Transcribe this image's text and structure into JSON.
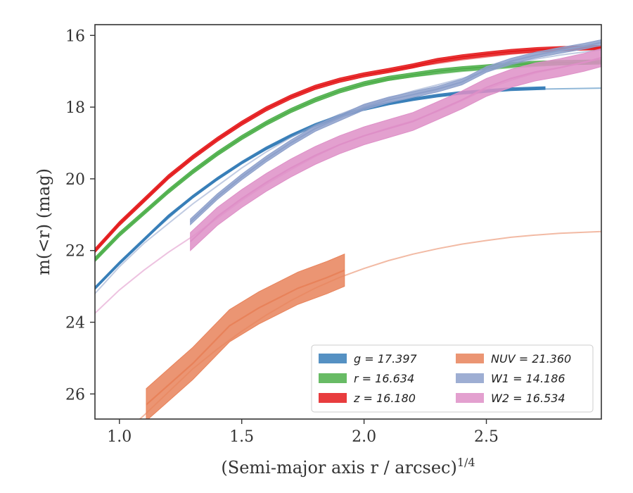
{
  "chart_data": {
    "type": "line",
    "xlabel": "(Semi-major axis r / arcsec)^1/4",
    "ylabel": "m(<r) (mag)",
    "xlim": [
      0.9,
      2.97
    ],
    "ylim": [
      26.7,
      15.7
    ],
    "y_inverted": true,
    "x_ticks": [
      1.0,
      1.5,
      2.0,
      2.5
    ],
    "x_tick_labels": [
      "1.0",
      "1.5",
      "2.0",
      "2.5"
    ],
    "y_ticks": [
      16,
      18,
      20,
      22,
      24,
      26
    ],
    "y_tick_labels": [
      "16",
      "18",
      "20",
      "22",
      "24",
      "26"
    ],
    "grid": false,
    "legend_position": "lower-right",
    "legend_columns": 2,
    "series": [
      {
        "name": "g = 17.397",
        "color": "#377eb8",
        "measured": {
          "x": [
            0.9,
            1.0,
            1.1,
            1.2,
            1.3,
            1.4,
            1.5,
            1.6,
            1.7,
            1.8,
            1.9,
            2.0,
            2.1,
            2.2,
            2.3,
            2.4,
            2.5,
            2.6,
            2.74
          ],
          "y": [
            23.05,
            22.35,
            21.7,
            21.05,
            20.5,
            20.0,
            19.55,
            19.15,
            18.8,
            18.5,
            18.25,
            18.05,
            17.9,
            17.78,
            17.68,
            17.6,
            17.55,
            17.5,
            17.47
          ],
          "band": 0.04
        },
        "model": {
          "x": [
            0.9,
            1.1,
            1.3,
            1.5,
            1.7,
            1.9,
            2.1,
            2.3,
            2.5,
            2.7,
            2.97
          ],
          "y": [
            23.05,
            21.7,
            20.5,
            19.55,
            18.8,
            18.25,
            17.9,
            17.68,
            17.55,
            17.5,
            17.47
          ]
        }
      },
      {
        "name": "r = 16.634",
        "color": "#4daf4a",
        "measured": {
          "x": [
            0.9,
            1.0,
            1.1,
            1.2,
            1.3,
            1.4,
            1.5,
            1.6,
            1.7,
            1.8,
            1.9,
            2.0,
            2.1,
            2.2,
            2.3,
            2.4,
            2.5,
            2.6,
            2.7,
            2.8,
            2.9,
            2.97
          ],
          "y": [
            22.25,
            21.55,
            20.95,
            20.35,
            19.8,
            19.3,
            18.85,
            18.45,
            18.1,
            17.8,
            17.55,
            17.35,
            17.2,
            17.1,
            17.0,
            16.93,
            16.88,
            16.82,
            16.78,
            16.76,
            16.75,
            16.74
          ],
          "band": 0.06
        },
        "model": {
          "x": [
            1.9,
            2.0,
            2.2,
            2.4,
            2.6,
            2.8,
            2.97
          ],
          "y": [
            17.55,
            17.35,
            17.15,
            17.0,
            16.9,
            16.82,
            16.78
          ]
        }
      },
      {
        "name": "z = 16.180",
        "color": "#e41a1c",
        "measured": {
          "x": [
            0.9,
            1.0,
            1.1,
            1.2,
            1.3,
            1.4,
            1.5,
            1.6,
            1.7,
            1.8,
            1.9,
            2.0,
            2.1,
            2.2,
            2.3,
            2.4,
            2.5,
            2.6,
            2.7,
            2.8,
            2.9,
            2.97
          ],
          "y": [
            22.0,
            21.25,
            20.6,
            19.95,
            19.4,
            18.9,
            18.45,
            18.05,
            17.72,
            17.45,
            17.25,
            17.1,
            16.98,
            16.85,
            16.7,
            16.6,
            16.52,
            16.45,
            16.4,
            16.37,
            16.35,
            16.34
          ],
          "band": 0.06
        },
        "model": {
          "x": [
            2.0,
            2.2,
            2.4,
            2.6,
            2.8,
            2.97
          ],
          "y": [
            17.1,
            16.88,
            16.68,
            16.52,
            16.42,
            16.36
          ]
        }
      },
      {
        "name": "NUV = 21.360",
        "color": "#e8825a",
        "measured": {
          "x": [
            1.11,
            1.3,
            1.45,
            1.57,
            1.73,
            1.85,
            1.92
          ],
          "y": [
            26.3,
            25.15,
            24.1,
            23.6,
            23.05,
            22.75,
            22.55
          ],
          "band": 0.45
        },
        "model": {
          "x": [
            1.0,
            1.1,
            1.2,
            1.3,
            1.4,
            1.5,
            1.6,
            1.7,
            1.8,
            1.9,
            2.0,
            2.1,
            2.2,
            2.3,
            2.4,
            2.5,
            2.6,
            2.7,
            2.8,
            2.97
          ],
          "y": [
            27.2,
            26.6,
            25.95,
            25.3,
            24.75,
            24.25,
            23.8,
            23.4,
            23.05,
            22.75,
            22.5,
            22.28,
            22.1,
            21.95,
            21.82,
            21.72,
            21.63,
            21.57,
            21.52,
            21.47
          ]
        }
      },
      {
        "name": "W1 = 14.186",
        "color": "#8da0cb",
        "measured": {
          "x": [
            1.29,
            1.4,
            1.5,
            1.6,
            1.7,
            1.8,
            1.9,
            2.0,
            2.1,
            2.2,
            2.3,
            2.4,
            2.5,
            2.6,
            2.7,
            2.8,
            2.9,
            2.97
          ],
          "y": [
            21.2,
            20.5,
            19.95,
            19.45,
            19.0,
            18.6,
            18.3,
            18.0,
            17.8,
            17.65,
            17.5,
            17.3,
            16.95,
            16.72,
            16.55,
            16.42,
            16.3,
            16.2
          ],
          "band": 0.08
        },
        "model": {
          "x": [
            0.9,
            1.0,
            1.1,
            1.2,
            1.3,
            1.4,
            1.5,
            1.6,
            1.7,
            1.8,
            1.9,
            2.0,
            2.1,
            2.2,
            2.3,
            2.4,
            2.5,
            2.6,
            2.7,
            2.8,
            2.97
          ],
          "y": [
            23.2,
            22.45,
            21.8,
            21.25,
            20.7,
            20.2,
            19.7,
            19.25,
            18.85,
            18.5,
            18.2,
            17.95,
            17.75,
            17.55,
            17.38,
            17.2,
            17.0,
            16.82,
            16.66,
            16.55,
            16.4
          ]
        }
      },
      {
        "name": "W2 = 16.534",
        "color": "#de8fc7",
        "measured": {
          "x": [
            1.29,
            1.4,
            1.5,
            1.6,
            1.7,
            1.8,
            1.9,
            2.0,
            2.1,
            2.2,
            2.3,
            2.4,
            2.5,
            2.6,
            2.7,
            2.8,
            2.9,
            2.97
          ],
          "y": [
            21.75,
            21.05,
            20.55,
            20.1,
            19.7,
            19.35,
            19.05,
            18.8,
            18.6,
            18.4,
            18.1,
            17.8,
            17.45,
            17.2,
            17.02,
            16.9,
            16.75,
            16.62
          ],
          "band": 0.25
        },
        "model": {
          "x": [
            0.9,
            1.0,
            1.1,
            1.2,
            1.3,
            1.4,
            1.5,
            1.6,
            1.7,
            1.8,
            1.9,
            2.0,
            2.1,
            2.2,
            2.3,
            2.4,
            2.5,
            2.6,
            2.7,
            2.8,
            2.97
          ],
          "y": [
            23.75,
            23.1,
            22.55,
            22.05,
            21.6,
            21.1,
            20.6,
            20.15,
            19.75,
            19.38,
            19.05,
            18.8,
            18.58,
            18.38,
            18.12,
            17.82,
            17.5,
            17.25,
            17.05,
            16.9,
            16.65
          ]
        }
      }
    ]
  }
}
